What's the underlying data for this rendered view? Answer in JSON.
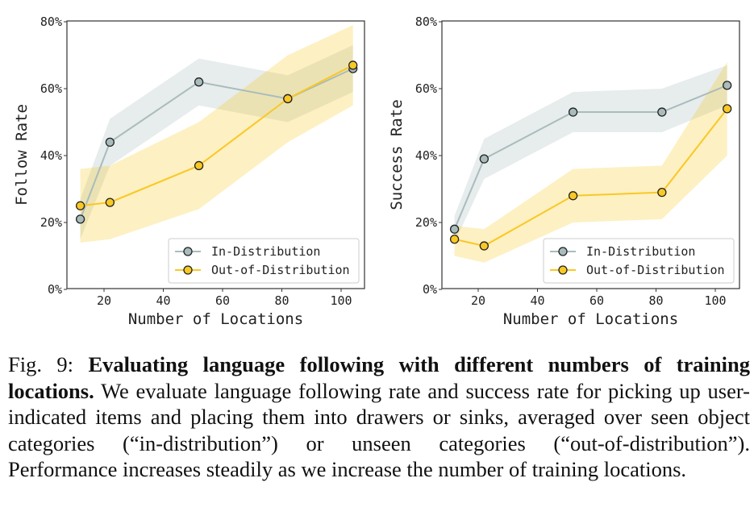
{
  "chart_data": [
    {
      "type": "line",
      "title": "",
      "xlabel": "Number of Locations",
      "ylabel": "Follow Rate",
      "xlim": [
        8,
        108
      ],
      "ylim": [
        0,
        80
      ],
      "xticks": [
        20,
        40,
        60,
        80,
        100
      ],
      "xtick_labels": [
        "20",
        "40",
        "60",
        "80",
        "100"
      ],
      "yticks": [
        0,
        20,
        40,
        60,
        80
      ],
      "ytick_labels": [
        "0%",
        "20%",
        "40%",
        "60%",
        "80%"
      ],
      "legend_placement": "bottom-right",
      "x": [
        12,
        22,
        52,
        82,
        104
      ],
      "series": [
        {
          "name": "In-Distribution",
          "color": "#a9bcbc",
          "values": [
            21,
            44,
            62,
            57,
            66
          ],
          "lower": [
            15,
            37,
            55,
            50,
            59
          ],
          "upper": [
            27,
            51,
            69,
            64,
            73
          ]
        },
        {
          "name": "Out-of-Distribution",
          "color": "#f9c825",
          "values": [
            25,
            26,
            37,
            57,
            67
          ],
          "lower": [
            14,
            15,
            24,
            44,
            55
          ],
          "upper": [
            36,
            37,
            50,
            70,
            79
          ]
        }
      ]
    },
    {
      "type": "line",
      "title": "",
      "xlabel": "Number of Locations",
      "ylabel": "Success Rate",
      "xlim": [
        8,
        108
      ],
      "ylim": [
        0,
        80
      ],
      "xticks": [
        20,
        40,
        60,
        80,
        100
      ],
      "xtick_labels": [
        "20",
        "40",
        "60",
        "80",
        "100"
      ],
      "yticks": [
        0,
        20,
        40,
        60,
        80
      ],
      "ytick_labels": [
        "0%",
        "20%",
        "40%",
        "60%",
        "80%"
      ],
      "legend_placement": "bottom-right",
      "x": [
        12,
        22,
        52,
        82,
        104
      ],
      "series": [
        {
          "name": "In-Distribution",
          "color": "#a9bcbc",
          "values": [
            18,
            39,
            53,
            53,
            61
          ],
          "lower": [
            14,
            33,
            47,
            47,
            55
          ],
          "upper": [
            22,
            45,
            59,
            60,
            67
          ]
        },
        {
          "name": "Out-of-Distribution",
          "color": "#f9c825",
          "values": [
            15,
            13,
            28,
            29,
            54
          ],
          "lower": [
            10,
            8,
            20,
            21,
            40
          ],
          "upper": [
            19,
            18,
            36,
            37,
            68
          ]
        }
      ]
    }
  ],
  "caption": {
    "label": "Fig. 9: ",
    "bold": "Evaluating language following with different numbers of training locations.",
    "text": " We evaluate language following rate and success rate for picking up user-indicated items and placing them into drawers or sinks, averaged over seen object categories (“in-distribution”) or unseen categories (“out-of-distribution”). Performance increases steadily as we increase the number of training locations."
  }
}
